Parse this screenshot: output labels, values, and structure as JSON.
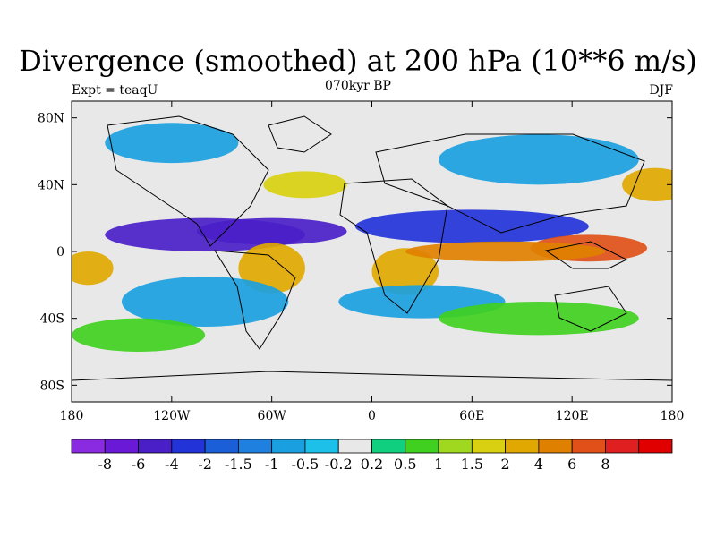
{
  "chart_data": {
    "type": "heatmap",
    "title": "Divergence (smoothed) at 200 hPa (10**6 m/s)",
    "subtitle_left": "Expt = teaqU",
    "subtitle_center": "070kyr BP",
    "subtitle_right": "DJF",
    "x_ticks": [
      {
        "value": -180,
        "label": "180"
      },
      {
        "value": -120,
        "label": "120W"
      },
      {
        "value": -60,
        "label": "60W"
      },
      {
        "value": 0,
        "label": "0"
      },
      {
        "value": 60,
        "label": "60E"
      },
      {
        "value": 120,
        "label": "120E"
      },
      {
        "value": 180,
        "label": "180"
      }
    ],
    "y_ticks": [
      {
        "value": 80,
        "label": "80N"
      },
      {
        "value": 40,
        "label": "40N"
      },
      {
        "value": 0,
        "label": "0"
      },
      {
        "value": -40,
        "label": "40S"
      },
      {
        "value": -80,
        "label": "80S"
      }
    ],
    "xlim": [
      -180,
      180
    ],
    "ylim": [
      -90,
      90
    ],
    "colorbar": {
      "colors": [
        "#8a2be2",
        "#6a19d6",
        "#4a1fc8",
        "#2233d8",
        "#1a5fd8",
        "#1f80e0",
        "#1aa0e0",
        "#1cc0e8",
        "#e8e8e8",
        "#10d080",
        "#40d020",
        "#a0d820",
        "#d8d010",
        "#e0a800",
        "#e08000",
        "#e05018",
        "#e02020",
        "#e00000"
      ],
      "labels": [
        "-8",
        "-6",
        "-4",
        "-2",
        "-1.5",
        "-1",
        "-0.5",
        "-0.2",
        "0.2",
        "0.5",
        "1",
        "1.5",
        "2",
        "4",
        "6",
        "8"
      ]
    },
    "regions": [
      {
        "lon": -100,
        "lat": 10,
        "rx": 60,
        "ry": 10,
        "value": -5
      },
      {
        "lon": -60,
        "lat": 12,
        "rx": 45,
        "ry": 8,
        "value": -6
      },
      {
        "lon": 60,
        "lat": 15,
        "rx": 70,
        "ry": 10,
        "value": -3
      },
      {
        "lon": -120,
        "lat": 65,
        "rx": 40,
        "ry": 12,
        "value": -1
      },
      {
        "lon": 100,
        "lat": 55,
        "rx": 60,
        "ry": 15,
        "value": -1
      },
      {
        "lon": -60,
        "lat": -10,
        "rx": 20,
        "ry": 15,
        "value": 3
      },
      {
        "lon": 20,
        "lat": -12,
        "rx": 20,
        "ry": 14,
        "value": 3
      },
      {
        "lon": 130,
        "lat": 2,
        "rx": 35,
        "ry": 8,
        "value": 6
      },
      {
        "lon": 80,
        "lat": 0,
        "rx": 60,
        "ry": 6,
        "value": 5
      },
      {
        "lon": -170,
        "lat": -10,
        "rx": 15,
        "ry": 10,
        "value": 2
      },
      {
        "lon": 170,
        "lat": 40,
        "rx": 20,
        "ry": 10,
        "value": 2
      },
      {
        "lon": -100,
        "lat": -30,
        "rx": 50,
        "ry": 15,
        "value": -1
      },
      {
        "lon": 30,
        "lat": -30,
        "rx": 50,
        "ry": 10,
        "value": -1
      },
      {
        "lon": -40,
        "lat": 40,
        "rx": 25,
        "ry": 8,
        "value": 1.5
      },
      {
        "lon": 100,
        "lat": -40,
        "rx": 60,
        "ry": 10,
        "value": 0.5
      },
      {
        "lon": -140,
        "lat": -50,
        "rx": 40,
        "ry": 10,
        "value": 0.5
      }
    ]
  }
}
